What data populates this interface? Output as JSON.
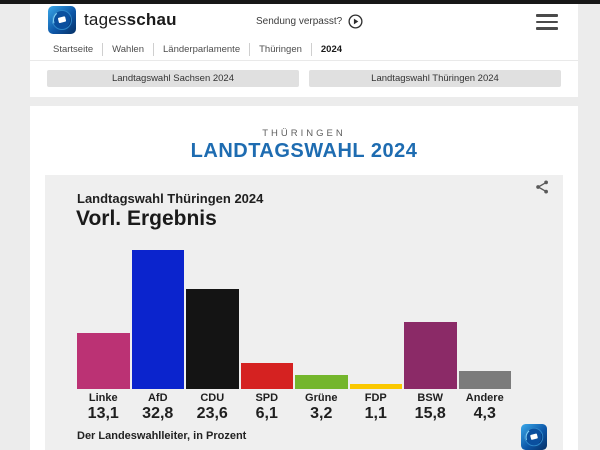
{
  "page": {
    "topbar_color": "#171717",
    "background_color": "#ececec",
    "accent_blue": "#1e6cb1"
  },
  "header": {
    "brand": {
      "word_light": "tages",
      "word_bold": "schau"
    },
    "sendung_verpasst_label": "Sendung verpasst?",
    "breadcrumb": [
      "Startseite",
      "Wahlen",
      "Länderparlamente",
      "Thüringen",
      "2024"
    ],
    "quicklinks": [
      "Landtagswahl Sachsen 2024",
      "Landtagswahl Thüringen 2024"
    ]
  },
  "title": {
    "kicker": "THÜRINGEN",
    "heading": "LANDTAGSWAHL 2024"
  },
  "chart_card": {
    "title": "Landtagswahl Thüringen 2024",
    "subtitle": "Vorl. Ergebnis",
    "source": "Der Landeswahlleiter, in Prozent"
  },
  "chart_data": {
    "type": "bar",
    "title": "Landtagswahl Thüringen 2024 — Vorl. Ergebnis",
    "categories": [
      "Linke",
      "AfD",
      "CDU",
      "SPD",
      "Grüne",
      "FDP",
      "BSW",
      "Andere"
    ],
    "values": [
      13.1,
      32.8,
      23.6,
      6.1,
      3.2,
      1.1,
      15.8,
      4.3
    ],
    "value_labels": [
      "13,1",
      "32,8",
      "23,6",
      "6,1",
      "3,2",
      "1,1",
      "15,8",
      "4,3"
    ],
    "colors": [
      "#bb3274",
      "#0b24cd",
      "#141414",
      "#d52221",
      "#74b62c",
      "#fac800",
      "#8b2a67",
      "#7b7b7b"
    ],
    "unit": "Prozent",
    "ylim": [
      0,
      33
    ],
    "grid": false,
    "legend": false,
    "source": "Der Landeswahlleiter, in Prozent"
  },
  "icons": {
    "brand_logo": "tagesschau-globe-icon",
    "play": "play-icon",
    "menu": "hamburger-menu-icon",
    "share": "share-icon"
  }
}
